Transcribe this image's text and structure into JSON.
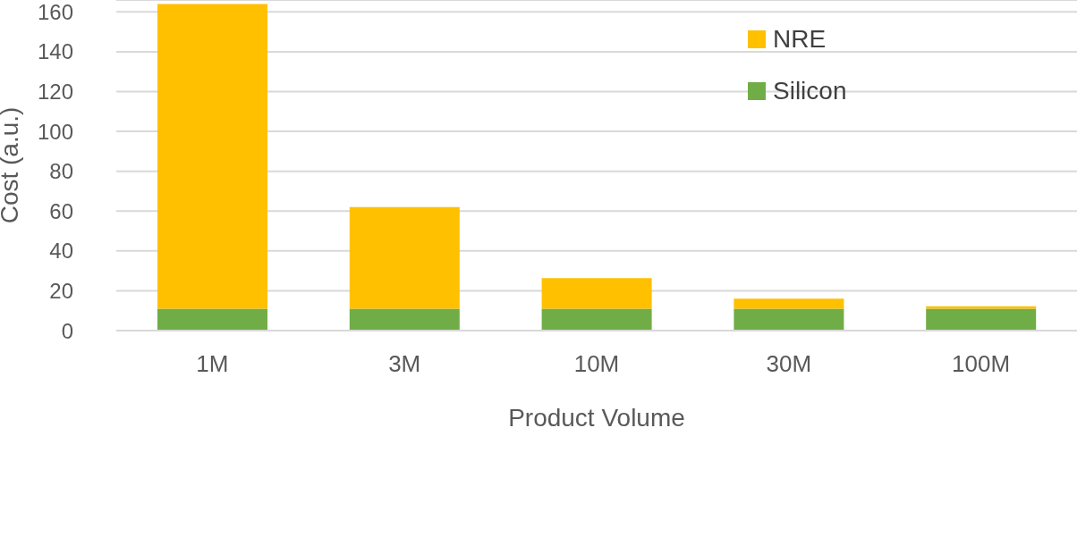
{
  "chart_data": {
    "type": "bar",
    "stacked": true,
    "xlabel": "Product Volume",
    "ylabel": "Cost (a.u.)",
    "categories": [
      "1M",
      "3M",
      "10M",
      "30M",
      "100M"
    ],
    "series": [
      {
        "name": "Silicon",
        "color": "#70ad47",
        "values": [
          11,
          11,
          11,
          11,
          11
        ]
      },
      {
        "name": "NRE",
        "color": "#ffc000",
        "values": [
          153,
          51,
          15.4,
          5,
          1.2
        ]
      }
    ],
    "ylim": [
      0,
      166
    ],
    "yticks": [
      0,
      20,
      40,
      60,
      80,
      100,
      120,
      140,
      160
    ],
    "grid": "y",
    "legend": "top right"
  }
}
